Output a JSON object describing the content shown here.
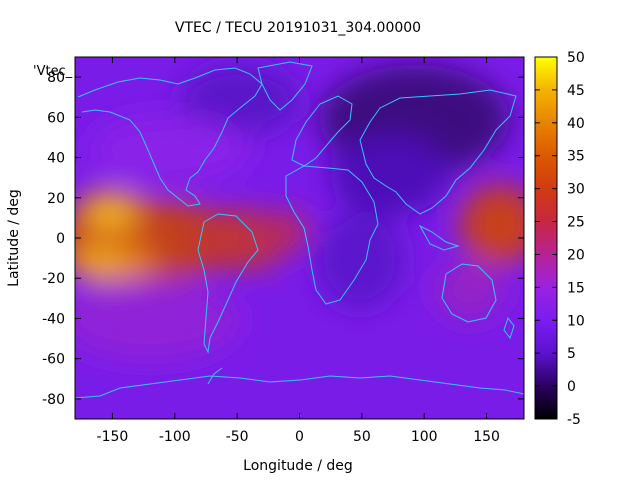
{
  "title": "VTEC / TECU 20191031_304.00000",
  "legend_key": "'Vtec_",
  "xlabel": "Longitude / deg",
  "ylabel": "Latitude / deg",
  "x_ticks": [
    "-150",
    "-100",
    "-50",
    "0",
    "50",
    "100",
    "150"
  ],
  "x_tick_values": [
    -150,
    -100,
    -50,
    0,
    50,
    100,
    150
  ],
  "y_ticks": [
    "-80",
    "-60",
    "-40",
    "-20",
    "0",
    "20",
    "40",
    "60",
    "80"
  ],
  "y_tick_values": [
    -80,
    -60,
    -40,
    -20,
    0,
    20,
    40,
    60,
    80
  ],
  "colorbar_ticks": [
    "-5",
    "0",
    "5",
    "10",
    "15",
    "20",
    "25",
    "30",
    "35",
    "40",
    "45",
    "50"
  ],
  "colorbar_values": [
    -5,
    0,
    5,
    10,
    15,
    20,
    25,
    30,
    35,
    40,
    45,
    50
  ],
  "x_range": [
    -180,
    180
  ],
  "y_range": [
    -90,
    90
  ],
  "cb_range": [
    -5,
    50
  ],
  "colors": {
    "coast": "#33c6ff",
    "frame": "#000000"
  },
  "chart_data": {
    "type": "heatmap",
    "title": "VTEC / TECU 20191031_304.00000",
    "xlabel": "Longitude / deg",
    "ylabel": "Latitude / deg",
    "xlim": [
      -180,
      180
    ],
    "ylim": [
      -90,
      90
    ],
    "color_range": [
      -5,
      50
    ],
    "colormap": "black-purple-red-yellow",
    "features": [
      {
        "lon": -150,
        "lat": 10,
        "vtec": 35
      },
      {
        "lon": -155,
        "lat": -15,
        "vtec": 38
      },
      {
        "lon": -110,
        "lat": -10,
        "vtec": 30
      },
      {
        "lon": -60,
        "lat": -8,
        "vtec": 26
      },
      {
        "lon": -30,
        "lat": -5,
        "vtec": 24
      },
      {
        "lon": 160,
        "lat": 5,
        "vtec": 27
      },
      {
        "lon": 80,
        "lat": 60,
        "vtec": 1
      },
      {
        "lon": 60,
        "lat": 20,
        "vtec": 6
      }
    ]
  }
}
